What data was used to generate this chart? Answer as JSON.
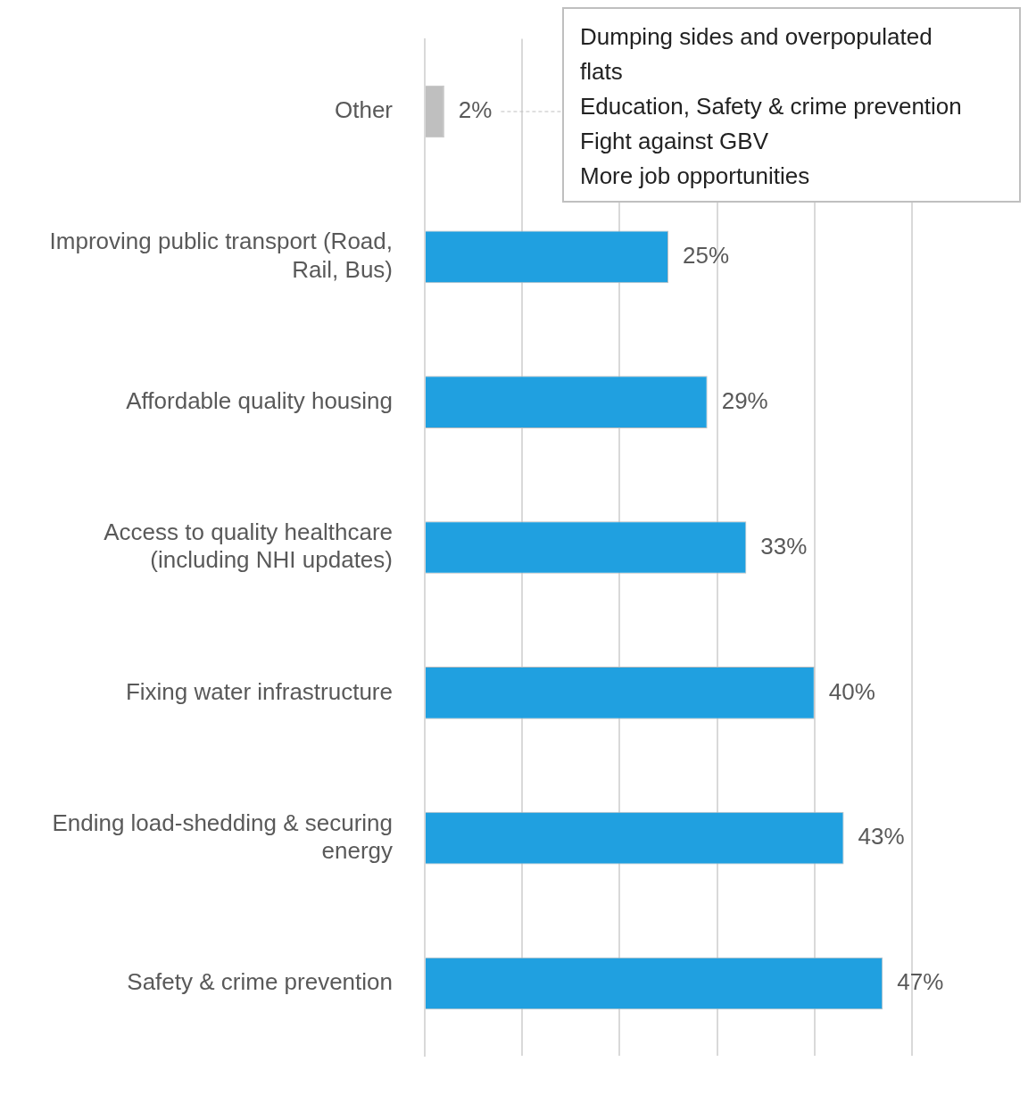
{
  "chart_data": {
    "type": "bar",
    "orientation": "horizontal",
    "categories": [
      "Other",
      "Improving public transport (Road, Rail, Bus)",
      "Affordable quality housing",
      "Access to quality healthcare (including NHI updates)",
      "Fixing water infrastructure",
      "Ending load-shedding & securing energy",
      "Safety & crime prevention"
    ],
    "values": [
      2,
      25,
      29,
      33,
      40,
      43,
      47
    ],
    "colors": [
      "#bfbfbf",
      "#20a0e0",
      "#20a0e0",
      "#20a0e0",
      "#20a0e0",
      "#20a0e0",
      "#20a0e0"
    ],
    "value_labels": [
      "2%",
      "25%",
      "29%",
      "33%",
      "40%",
      "43%",
      "47%"
    ],
    "xlim": [
      0,
      50
    ],
    "xticks": [
      {
        "value": 0,
        "label": null
      },
      {
        "value": 10,
        "label": null
      },
      {
        "value": 20,
        "label": null
      },
      {
        "value": 30,
        "label": null
      },
      {
        "value": 40,
        "label": null
      },
      {
        "value": 50,
        "label": null
      }
    ],
    "tick_labels": "y",
    "grid": "x",
    "legend": false,
    "annotations": [
      "Dumping sides and overpopulated flats\nEducation, Safety & crime prevention\nFight against GBV\nMore job opportunities"
    ]
  }
}
